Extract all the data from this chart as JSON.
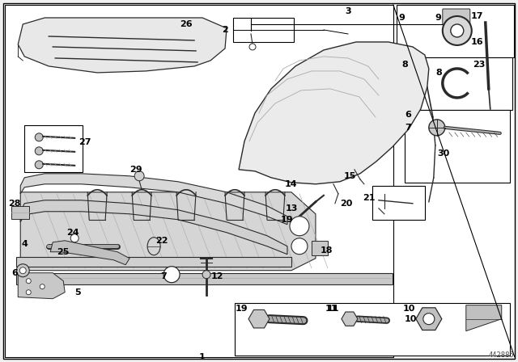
{
  "diagram_id": "442885",
  "bg_color": "#f5f5f5",
  "border_color": "#000000",
  "text_color": "#000000",
  "line_color": "#1a1a1a",
  "figsize": [
    6.4,
    4.48
  ],
  "dpi": 100
}
